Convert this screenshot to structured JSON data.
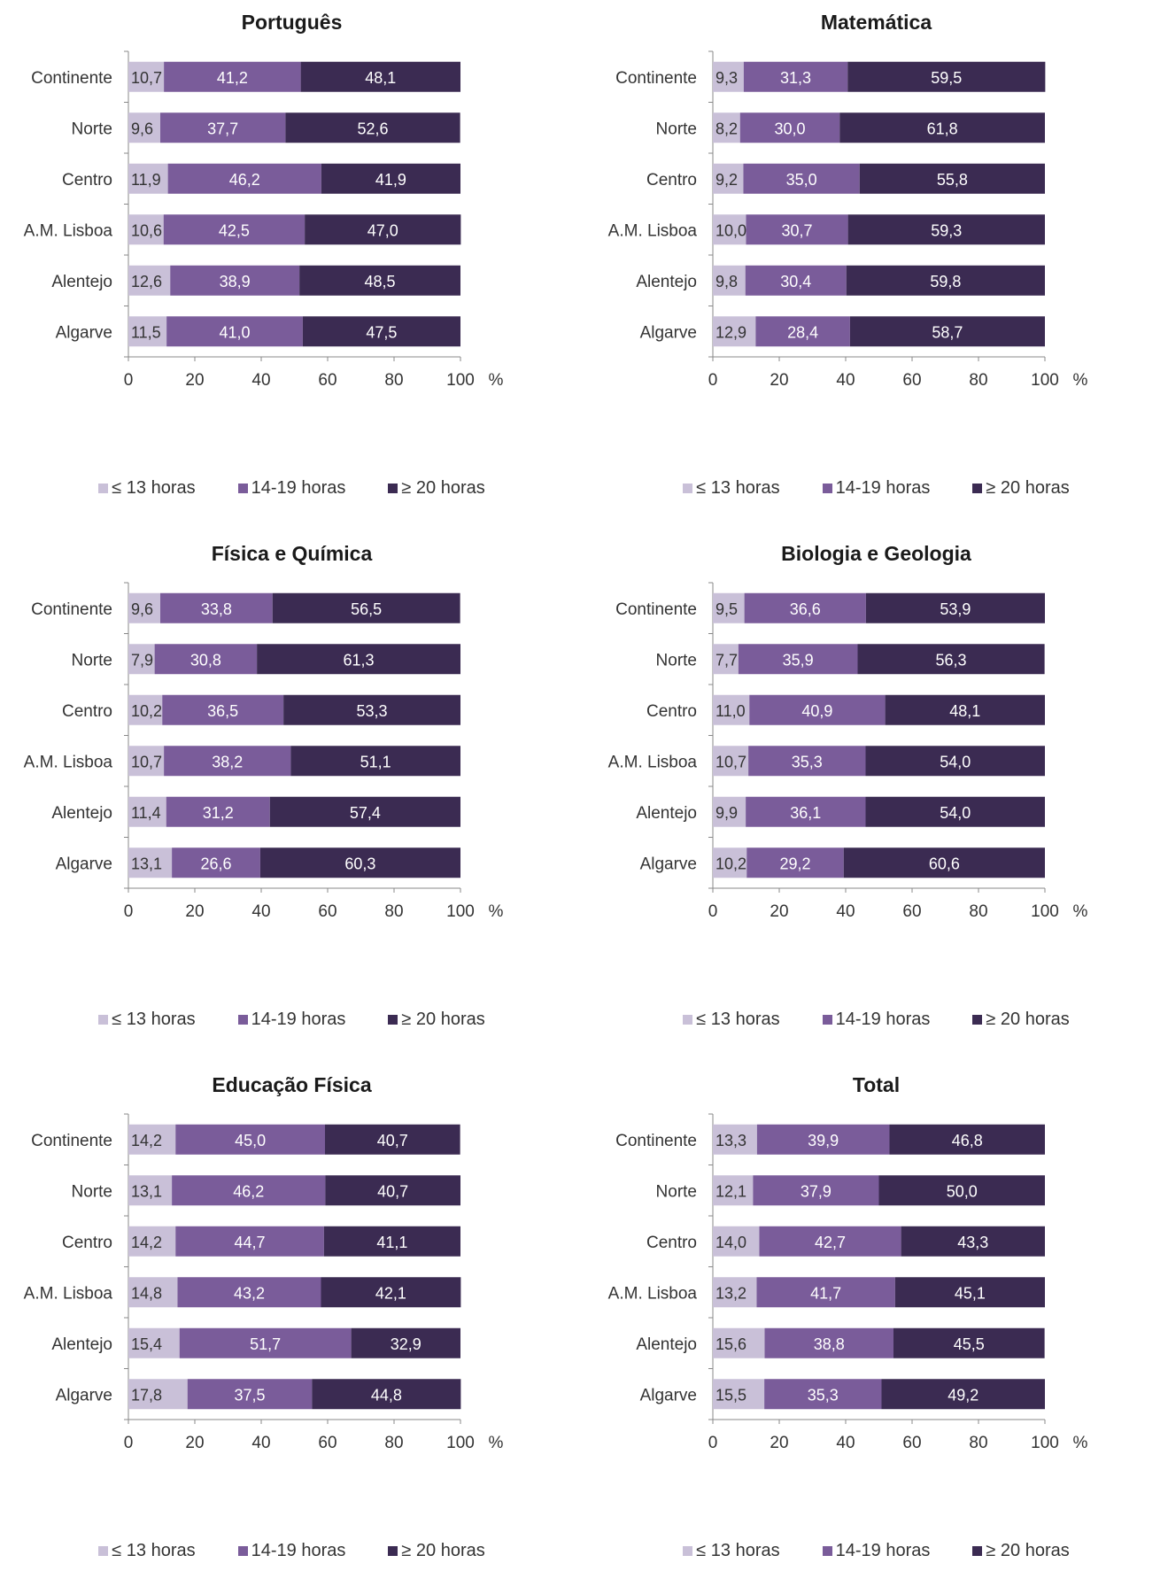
{
  "colors": {
    "le13": "#c9c0d8",
    "h14_19": "#7a5c9a",
    "ge20": "#3b2b52"
  },
  "chart_data": [
    {
      "type": "bar",
      "stacked": true,
      "orientation": "horizontal",
      "title": "Português",
      "categories": [
        "Continente",
        "Norte",
        "Centro",
        "A.M. Lisboa",
        "Alentejo",
        "Algarve"
      ],
      "series": [
        {
          "name": "≤ 13 horas",
          "values": [
            10.7,
            9.6,
            11.9,
            10.6,
            12.6,
            11.5
          ]
        },
        {
          "name": "14-19 horas",
          "values": [
            41.2,
            37.7,
            46.2,
            42.5,
            38.9,
            41.0
          ]
        },
        {
          "name": "≥ 20 horas",
          "values": [
            48.1,
            52.6,
            41.9,
            47.0,
            48.5,
            47.5
          ]
        }
      ],
      "data_labels": [
        [
          "10,7",
          "9,6",
          "11,9",
          "10,6",
          "12,6",
          "11,5"
        ],
        [
          "41,2",
          "37,7",
          "46,2",
          "42,5",
          "38,9",
          "41,0"
        ],
        [
          "48,1",
          "52,6",
          "41,9",
          "47,0",
          "48,5",
          "47,5"
        ]
      ],
      "xticks": [
        "0",
        "20",
        "40",
        "60",
        "80",
        "100"
      ],
      "xunit": "%",
      "xlim": [
        0,
        100
      ],
      "legend": "bottom"
    },
    {
      "type": "bar",
      "stacked": true,
      "orientation": "horizontal",
      "title": "Matemática",
      "categories": [
        "Continente",
        "Norte",
        "Centro",
        "A.M. Lisboa",
        "Alentejo",
        "Algarve"
      ],
      "series": [
        {
          "name": "≤ 13 horas",
          "values": [
            9.3,
            8.2,
            9.2,
            10.0,
            9.8,
            12.9
          ]
        },
        {
          "name": "14-19 horas",
          "values": [
            31.3,
            30.0,
            35.0,
            30.7,
            30.4,
            28.4
          ]
        },
        {
          "name": "≥ 20 horas",
          "values": [
            59.5,
            61.8,
            55.8,
            59.3,
            59.8,
            58.7
          ]
        }
      ],
      "data_labels": [
        [
          "9,3",
          "8,2",
          "9,2",
          "10,0",
          "9,8",
          "12,9"
        ],
        [
          "31,3",
          "30,0",
          "35,0",
          "30,7",
          "30,4",
          "28,4"
        ],
        [
          "59,5",
          "61,8",
          "55,8",
          "59,3",
          "59,8",
          "58,7"
        ]
      ],
      "xticks": [
        "0",
        "20",
        "40",
        "60",
        "80",
        "100"
      ],
      "xunit": "%",
      "xlim": [
        0,
        100
      ],
      "legend": "bottom"
    },
    {
      "type": "bar",
      "stacked": true,
      "orientation": "horizontal",
      "title": "Física e Química",
      "categories": [
        "Continente",
        "Norte",
        "Centro",
        "A.M. Lisboa",
        "Alentejo",
        "Algarve"
      ],
      "series": [
        {
          "name": "≤ 13 horas",
          "values": [
            9.6,
            7.9,
            10.2,
            10.7,
            11.4,
            13.1
          ]
        },
        {
          "name": "14-19 horas",
          "values": [
            33.8,
            30.8,
            36.5,
            38.2,
            31.2,
            26.6
          ]
        },
        {
          "name": "≥ 20 horas",
          "values": [
            56.5,
            61.3,
            53.3,
            51.1,
            57.4,
            60.3
          ]
        }
      ],
      "data_labels": [
        [
          "9,6",
          "7,9",
          "10,2",
          "10,7",
          "11,4",
          "13,1"
        ],
        [
          "33,8",
          "30,8",
          "36,5",
          "38,2",
          "31,2",
          "26,6"
        ],
        [
          "56,5",
          "61,3",
          "53,3",
          "51,1",
          "57,4",
          "60,3"
        ]
      ],
      "xticks": [
        "0",
        "20",
        "40",
        "60",
        "80",
        "100"
      ],
      "xunit": "%",
      "xlim": [
        0,
        100
      ],
      "legend": "bottom"
    },
    {
      "type": "bar",
      "stacked": true,
      "orientation": "horizontal",
      "title": "Biologia e Geologia",
      "categories": [
        "Continente",
        "Norte",
        "Centro",
        "A.M. Lisboa",
        "Alentejo",
        "Algarve"
      ],
      "series": [
        {
          "name": "≤ 13 horas",
          "values": [
            9.5,
            7.7,
            11.0,
            10.7,
            9.9,
            10.2
          ]
        },
        {
          "name": "14-19 horas",
          "values": [
            36.6,
            35.9,
            40.9,
            35.3,
            36.1,
            29.2
          ]
        },
        {
          "name": "≥ 20 horas",
          "values": [
            53.9,
            56.3,
            48.1,
            54.0,
            54.0,
            60.6
          ]
        }
      ],
      "data_labels": [
        [
          "9,5",
          "7,7",
          "11,0",
          "10,7",
          "9,9",
          "10,2"
        ],
        [
          "36,6",
          "35,9",
          "40,9",
          "35,3",
          "36,1",
          "29,2"
        ],
        [
          "53,9",
          "56,3",
          "48,1",
          "54,0",
          "54,0",
          "60,6"
        ]
      ],
      "xticks": [
        "0",
        "20",
        "40",
        "60",
        "80",
        "100"
      ],
      "xunit": "%",
      "xlim": [
        0,
        100
      ],
      "legend": "bottom"
    },
    {
      "type": "bar",
      "stacked": true,
      "orientation": "horizontal",
      "title": "Educação Física",
      "categories": [
        "Continente",
        "Norte",
        "Centro",
        "A.M. Lisboa",
        "Alentejo",
        "Algarve"
      ],
      "series": [
        {
          "name": "≤ 13 horas",
          "values": [
            14.2,
            13.1,
            14.2,
            14.8,
            15.4,
            17.8
          ]
        },
        {
          "name": "14-19 horas",
          "values": [
            45.0,
            46.2,
            44.7,
            43.2,
            51.7,
            37.5
          ]
        },
        {
          "name": "≥ 20 horas",
          "values": [
            40.7,
            40.7,
            41.1,
            42.1,
            32.9,
            44.8
          ]
        }
      ],
      "data_labels": [
        [
          "14,2",
          "13,1",
          "14,2",
          "14,8",
          "15,4",
          "17,8"
        ],
        [
          "45,0",
          "46,2",
          "44,7",
          "43,2",
          "51,7",
          "37,5"
        ],
        [
          "40,7",
          "40,7",
          "41,1",
          "42,1",
          "32,9",
          "44,8"
        ]
      ],
      "xticks": [
        "0",
        "20",
        "40",
        "60",
        "80",
        "100"
      ],
      "xunit": "%",
      "xlim": [
        0,
        100
      ],
      "legend": "bottom"
    },
    {
      "type": "bar",
      "stacked": true,
      "orientation": "horizontal",
      "title": "Total",
      "categories": [
        "Continente",
        "Norte",
        "Centro",
        "A.M. Lisboa",
        "Alentejo",
        "Algarve"
      ],
      "series": [
        {
          "name": "≤ 13 horas",
          "values": [
            13.3,
            12.1,
            14.0,
            13.2,
            15.6,
            15.5
          ]
        },
        {
          "name": "14-19 horas",
          "values": [
            39.9,
            37.9,
            42.7,
            41.7,
            38.8,
            35.3
          ]
        },
        {
          "name": "≥ 20 horas",
          "values": [
            46.8,
            50.0,
            43.3,
            45.1,
            45.5,
            49.2
          ]
        }
      ],
      "data_labels": [
        [
          "13,3",
          "12,1",
          "14,0",
          "13,2",
          "15,6",
          "15,5"
        ],
        [
          "39,9",
          "37,9",
          "42,7",
          "41,7",
          "38,8",
          "35,3"
        ],
        [
          "46,8",
          "50,0",
          "43,3",
          "45,1",
          "45,5",
          "49,2"
        ]
      ],
      "xticks": [
        "0",
        "20",
        "40",
        "60",
        "80",
        "100"
      ],
      "xunit": "%",
      "xlim": [
        0,
        100
      ],
      "legend": "bottom"
    }
  ]
}
